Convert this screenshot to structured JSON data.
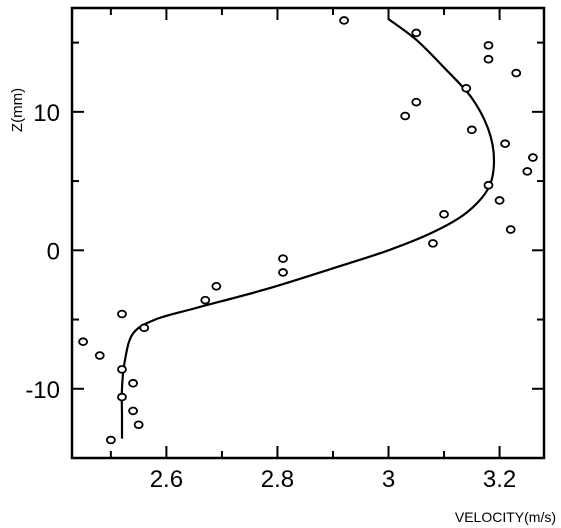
{
  "chart_data": {
    "type": "scatter",
    "title": "",
    "xlabel": "VELOCITY(m/s)",
    "ylabel": "Z(mm)",
    "xlim": [
      2.43,
      3.28
    ],
    "ylim": [
      -15,
      17.5
    ],
    "x_ticks": [
      2.6,
      2.8,
      3,
      3.2
    ],
    "x_tick_labels": [
      "2.6",
      "2.8",
      "3",
      "3.2"
    ],
    "x_minor_ticks": [
      2.5,
      2.7,
      2.9,
      3.1
    ],
    "y_ticks": [
      -10,
      0,
      10
    ],
    "y_tick_labels": [
      "-10",
      "0",
      "10"
    ],
    "y_minor_ticks": [
      -15,
      -5,
      5,
      15
    ],
    "grid": false,
    "legend": "none",
    "points": [
      {
        "x": 2.92,
        "y": 16.6
      },
      {
        "x": 3.05,
        "y": 15.7
      },
      {
        "x": 3.18,
        "y": 14.8
      },
      {
        "x": 3.18,
        "y": 13.8
      },
      {
        "x": 3.23,
        "y": 12.8
      },
      {
        "x": 3.14,
        "y": 11.7
      },
      {
        "x": 3.05,
        "y": 10.7
      },
      {
        "x": 3.03,
        "y": 9.7
      },
      {
        "x": 3.15,
        "y": 8.7
      },
      {
        "x": 3.21,
        "y": 7.7
      },
      {
        "x": 3.26,
        "y": 6.7
      },
      {
        "x": 3.25,
        "y": 5.7
      },
      {
        "x": 3.18,
        "y": 4.7
      },
      {
        "x": 3.2,
        "y": 3.6
      },
      {
        "x": 3.1,
        "y": 2.6
      },
      {
        "x": 3.22,
        "y": 1.5
      },
      {
        "x": 3.08,
        "y": 0.5
      },
      {
        "x": 2.81,
        "y": -0.6
      },
      {
        "x": 2.81,
        "y": -1.6
      },
      {
        "x": 2.69,
        "y": -2.6
      },
      {
        "x": 2.67,
        "y": -3.6
      },
      {
        "x": 2.52,
        "y": -4.6
      },
      {
        "x": 2.56,
        "y": -5.6
      },
      {
        "x": 2.45,
        "y": -6.6
      },
      {
        "x": 2.48,
        "y": -7.6
      },
      {
        "x": 2.52,
        "y": -8.6
      },
      {
        "x": 2.54,
        "y": -9.6
      },
      {
        "x": 2.52,
        "y": -10.6
      },
      {
        "x": 2.54,
        "y": -11.6
      },
      {
        "x": 2.55,
        "y": -12.6
      },
      {
        "x": 2.5,
        "y": -13.7
      }
    ],
    "curve": [
      {
        "x": 2.52,
        "y": -13.6
      },
      {
        "x": 2.52,
        "y": -12
      },
      {
        "x": 2.52,
        "y": -10
      },
      {
        "x": 2.525,
        "y": -8
      },
      {
        "x": 2.54,
        "y": -6
      },
      {
        "x": 2.58,
        "y": -5
      },
      {
        "x": 2.65,
        "y": -4.2
      },
      {
        "x": 2.78,
        "y": -2.8
      },
      {
        "x": 2.9,
        "y": -1.3
      },
      {
        "x": 3.0,
        "y": 0
      },
      {
        "x": 3.08,
        "y": 1.3
      },
      {
        "x": 3.14,
        "y": 2.7
      },
      {
        "x": 3.18,
        "y": 4.5
      },
      {
        "x": 3.19,
        "y": 6.5
      },
      {
        "x": 3.18,
        "y": 8.7
      },
      {
        "x": 3.15,
        "y": 11
      },
      {
        "x": 3.1,
        "y": 13.2
      },
      {
        "x": 3.05,
        "y": 15.2
      },
      {
        "x": 3.0,
        "y": 16.7
      }
    ]
  }
}
